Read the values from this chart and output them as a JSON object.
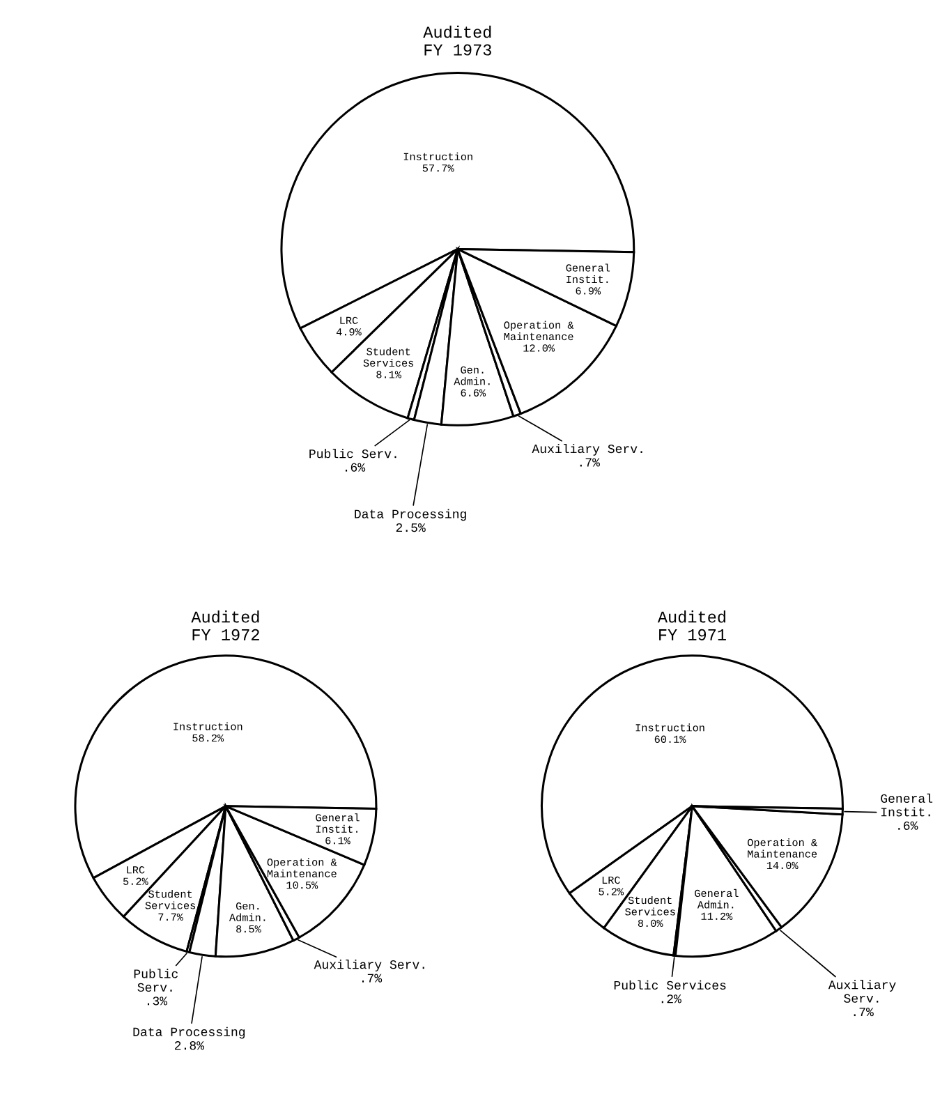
{
  "chart_data": [
    {
      "type": "pie",
      "title": "Audited\nFY 1973",
      "categories": [
        "Instruction",
        "LRC",
        "Student\nServices",
        "Public Serv.",
        "Data Processing",
        "Gen.\nAdmin.",
        "Auxiliary Serv.",
        "Operation &\nMaintenance",
        "General\nInstit."
      ],
      "values": [
        57.7,
        4.9,
        8.1,
        0.6,
        2.5,
        6.6,
        0.7,
        12.0,
        6.9
      ],
      "value_labels": [
        "57.7%",
        "4.9%",
        "8.1%",
        ".6%",
        "2.5%",
        "6.6%",
        ".7%",
        "12.0%",
        "6.9%"
      ],
      "colors": [
        "#ffffff",
        "#ffffff",
        "#ffffff",
        "#ffffff",
        "#ffffff",
        "#ffffff",
        "#ffffff",
        "#ffffff",
        "#ffffff"
      ]
    },
    {
      "type": "pie",
      "title": "Audited\nFY 1972",
      "categories": [
        "Instruction",
        "LRC",
        "Student\nServices",
        "Public\nServ.",
        "Data Processing",
        "Gen.\nAdmin.",
        "Auxiliary Serv.",
        "Operation &\nMaintenance",
        "General\nInstit."
      ],
      "values": [
        58.2,
        5.2,
        7.7,
        0.3,
        2.8,
        8.5,
        0.7,
        10.5,
        6.1
      ],
      "value_labels": [
        "58.2%",
        "5.2%",
        "7.7%",
        ".3%",
        "2.8%",
        "8.5%",
        ".7%",
        "10.5%",
        "6.1%"
      ],
      "colors": [
        "#ffffff",
        "#ffffff",
        "#ffffff",
        "#ffffff",
        "#ffffff",
        "#ffffff",
        "#ffffff",
        "#ffffff",
        "#ffffff"
      ]
    },
    {
      "type": "pie",
      "title": "Audited\nFY 1971",
      "categories": [
        "Instruction",
        "LRC",
        "Student\nServices",
        "Public Services",
        "General\nAdmin.",
        "Auxiliary\nServ.",
        "Operation &\nMaintenance",
        "General\nInstit."
      ],
      "values": [
        60.1,
        5.2,
        8.0,
        0.2,
        11.2,
        0.7,
        14.0,
        0.6
      ],
      "value_labels": [
        "60.1%",
        "5.2%",
        "8.0%",
        ".2%",
        "11.2%",
        ".7%",
        "14.0%",
        ".6%"
      ],
      "colors": [
        "#ffffff",
        "#ffffff",
        "#ffffff",
        "#ffffff",
        "#ffffff",
        "#ffffff",
        "#ffffff",
        "#ffffff"
      ]
    }
  ]
}
